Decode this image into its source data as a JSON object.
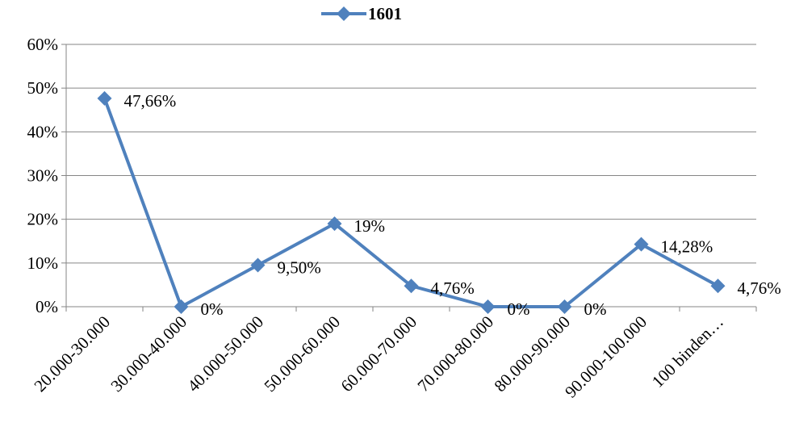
{
  "chart_data": {
    "type": "line",
    "title": "",
    "xlabel": "",
    "ylabel": "",
    "categories": [
      "20.000-30.000",
      "30.000-40.000",
      "40.000-50.000",
      "50.000-60.000",
      "60.000-70.000",
      "70.000-80.000",
      "80.000-90.000",
      "90.000-100.000",
      "100 binden…"
    ],
    "series": [
      {
        "name": "1601",
        "values": [
          47.66,
          0,
          9.5,
          19,
          4.76,
          0,
          0,
          14.28,
          4.76
        ],
        "data_labels": [
          "47,66%",
          "0%",
          "9,50%",
          "19%",
          "4,76%",
          "0%",
          "0%",
          "14,28%",
          "4,76%"
        ],
        "color": "#4F81BD",
        "marker": "diamond"
      }
    ],
    "ylim": [
      0,
      60
    ],
    "yticks": [
      0,
      10,
      20,
      30,
      40,
      50,
      60
    ],
    "ytick_labels": [
      "0%",
      "10%",
      "20%",
      "30%",
      "40%",
      "50%",
      "60%"
    ],
    "grid": true,
    "legend_position": "top"
  }
}
